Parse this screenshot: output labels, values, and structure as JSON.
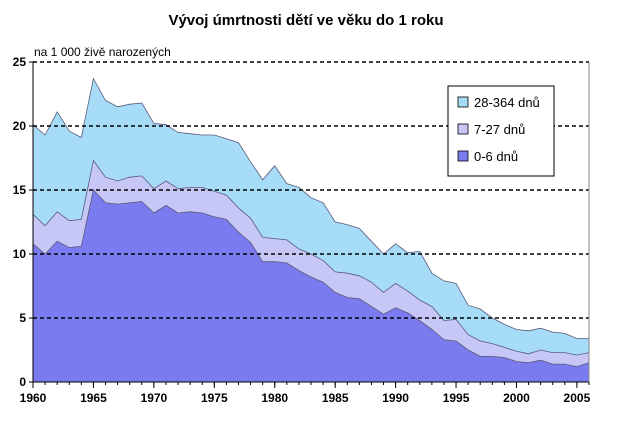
{
  "chart_data": {
    "type": "area",
    "stacked": true,
    "title": "Vývoj úmrtnosti dětí ve věku do 1 roku",
    "unit_label": "na 1 000 živě narozených",
    "xlabel": "",
    "ylabel": "",
    "xlim": [
      1960,
      2006
    ],
    "ylim": [
      0,
      25
    ],
    "xticks": [
      1960,
      1965,
      1970,
      1975,
      1980,
      1985,
      1990,
      1995,
      2000,
      2005
    ],
    "yticks": [
      0,
      5,
      10,
      15,
      20,
      25
    ],
    "grid": "horizontal dashed",
    "legend_position": "top-right",
    "x": [
      1960,
      1961,
      1962,
      1963,
      1964,
      1965,
      1966,
      1967,
      1968,
      1969,
      1970,
      1971,
      1972,
      1973,
      1974,
      1975,
      1976,
      1977,
      1978,
      1979,
      1980,
      1981,
      1982,
      1983,
      1984,
      1985,
      1986,
      1987,
      1988,
      1989,
      1990,
      1991,
      1992,
      1993,
      1994,
      1995,
      1996,
      1997,
      1998,
      1999,
      2000,
      2001,
      2002,
      2003,
      2004,
      2005,
      2006
    ],
    "series": [
      {
        "name": "0-6 dnů",
        "color": "#7b7bf0",
        "values": [
          10.8,
          10.0,
          11.0,
          10.5,
          10.6,
          15.0,
          14.0,
          13.9,
          14.0,
          14.1,
          13.2,
          13.8,
          13.2,
          13.3,
          13.2,
          12.9,
          12.7,
          11.7,
          10.9,
          9.4,
          9.4,
          9.3,
          8.7,
          8.2,
          7.8,
          7.0,
          6.6,
          6.5,
          5.9,
          5.3,
          5.8,
          5.4,
          4.8,
          4.1,
          3.3,
          3.2,
          2.5,
          2.0,
          2.0,
          1.9,
          1.6,
          1.5,
          1.7,
          1.4,
          1.4,
          1.2,
          1.5
        ]
      },
      {
        "name": "7-27 dnů",
        "color": "#c6c6f7",
        "values": [
          2.3,
          2.2,
          2.3,
          2.1,
          2.1,
          2.3,
          2.0,
          1.8,
          2.0,
          2.0,
          1.9,
          1.9,
          1.9,
          1.9,
          2.0,
          2.0,
          1.9,
          1.9,
          1.9,
          1.9,
          1.8,
          1.8,
          1.7,
          1.8,
          1.7,
          1.6,
          1.9,
          1.8,
          1.9,
          1.7,
          1.9,
          1.7,
          1.6,
          1.8,
          1.5,
          1.7,
          1.2,
          1.2,
          1.0,
          0.8,
          0.8,
          0.7,
          0.8,
          0.9,
          0.9,
          0.9,
          0.8
        ]
      },
      {
        "name": "28-364 dnů",
        "color": "#a6dcf8",
        "values": [
          7.0,
          7.1,
          7.8,
          7.0,
          6.4,
          6.4,
          6.0,
          5.8,
          5.7,
          5.7,
          5.1,
          4.4,
          4.4,
          4.2,
          4.1,
          4.4,
          4.4,
          5.1,
          4.4,
          4.5,
          5.7,
          4.4,
          4.8,
          4.4,
          4.5,
          3.9,
          3.8,
          3.7,
          3.2,
          3.0,
          3.1,
          3.0,
          3.8,
          2.6,
          3.1,
          2.8,
          2.3,
          2.5,
          2.0,
          1.8,
          1.7,
          1.8,
          1.7,
          1.6,
          1.5,
          1.3,
          1.1
        ]
      }
    ]
  }
}
